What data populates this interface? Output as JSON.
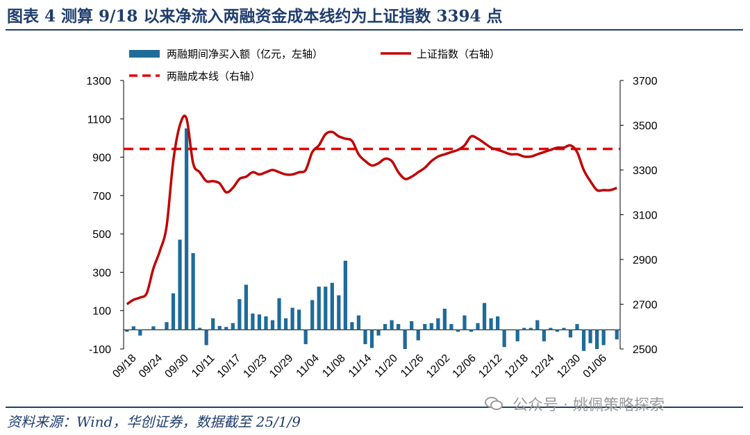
{
  "figure": {
    "title": "图表 4   测算 9/18 以来净流入两融资金成本线约为上证指数 3394 点",
    "source": "资料来源：Wind，华创证券，数据截至 25/1/9",
    "watermark": "公众号 · 姚佩策略探索",
    "watermark_icon": "wechat-icon"
  },
  "colors": {
    "bar": "#1f6b9a",
    "index_line": "#c00000",
    "cost_line": "#e00000",
    "title": "#1f3d6e"
  },
  "chart_data": {
    "type": "bar+line",
    "legend": [
      "两融期间净买入额（亿元，左轴）",
      "上证指数（右轴）",
      "两融成本线（右轴）"
    ],
    "legend_position": "top",
    "left_axis": {
      "min": -100,
      "max": 1300,
      "ticks": [
        -100,
        100,
        300,
        500,
        700,
        900,
        1100,
        1300
      ]
    },
    "right_axis": {
      "min": 2500,
      "max": 3700,
      "ticks": [
        2500,
        2700,
        2900,
        3100,
        3300,
        3500,
        3700
      ]
    },
    "x_labels": [
      "09/18",
      "09/24",
      "09/30",
      "10/11",
      "10/17",
      "10/23",
      "10/29",
      "11/04",
      "11/08",
      "11/14",
      "11/20",
      "11/26",
      "12/02",
      "12/06",
      "12/12",
      "12/18",
      "12/24",
      "12/30",
      "01/06"
    ],
    "grid": false,
    "series": [
      {
        "name": "两融期间净买入额（亿元，左轴）",
        "axis": "left",
        "kind": "bar",
        "values": [
          -10,
          18,
          -30,
          0,
          18,
          0,
          40,
          190,
          470,
          1050,
          400,
          10,
          -80,
          60,
          20,
          15,
          35,
          160,
          235,
          85,
          80,
          70,
          50,
          165,
          60,
          115,
          105,
          -75,
          155,
          225,
          225,
          245,
          180,
          360,
          40,
          75,
          -75,
          -95,
          -30,
          30,
          50,
          30,
          -100,
          45,
          -55,
          30,
          35,
          60,
          110,
          30,
          -10,
          75,
          -10,
          35,
          140,
          60,
          70,
          -90,
          0,
          -60,
          10,
          10,
          50,
          -60,
          10,
          -10,
          10,
          -40,
          30,
          -110,
          -70,
          -100,
          -80,
          0,
          -50
        ]
      },
      {
        "name": "上证指数（右轴）",
        "axis": "right",
        "kind": "line",
        "values": [
          2700,
          2720,
          2730,
          2750,
          2860,
          2940,
          3050,
          3340,
          3500,
          3530,
          3330,
          3290,
          3250,
          3250,
          3240,
          3200,
          3220,
          3260,
          3270,
          3290,
          3280,
          3290,
          3300,
          3290,
          3280,
          3280,
          3290,
          3300,
          3380,
          3410,
          3460,
          3470,
          3450,
          3440,
          3430,
          3370,
          3340,
          3320,
          3330,
          3350,
          3340,
          3290,
          3260,
          3270,
          3290,
          3310,
          3340,
          3360,
          3370,
          3380,
          3390,
          3410,
          3450,
          3440,
          3420,
          3400,
          3390,
          3380,
          3370,
          3370,
          3360,
          3360,
          3370,
          3380,
          3390,
          3400,
          3400,
          3410,
          3380,
          3300,
          3250,
          3210,
          3210,
          3210,
          3220
        ]
      },
      {
        "name": "两融成本线（右轴）",
        "axis": "right",
        "kind": "dashed-line",
        "value": 3394
      }
    ]
  }
}
